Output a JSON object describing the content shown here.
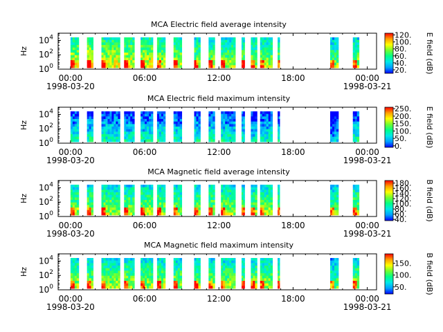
{
  "figure": {
    "background": "#ffffff",
    "colormap": [
      "#0000ff",
      "#00a0ff",
      "#00e8e8",
      "#00ff88",
      "#70ff30",
      "#ffff00",
      "#ffa000",
      "#ff0000"
    ]
  },
  "chart_data": [
    {
      "type": "heatmap",
      "title": "MCA  Electric field average intensity",
      "ylabel": "Hz",
      "colorbar_label": "E field (dB)",
      "colorbar_ticks": [
        "20.",
        "40.",
        "60.",
        "80.",
        "100.",
        "120."
      ],
      "colorbar_range": [
        10,
        125
      ],
      "x_ticks": [
        "00:00",
        "06:00",
        "12:00",
        "18:00",
        "00:00"
      ],
      "x_date_labels": [
        "1998-03-20",
        "1998-03-21"
      ],
      "y_ticks": [
        "10",
        "10",
        "10"
      ],
      "y_tick_exponents": [
        "0",
        "2",
        "4"
      ],
      "ylim": [
        1,
        100000
      ],
      "yscale": "log",
      "xlim": [
        "1998-03-19 23:00",
        "1998-03-21 00:45"
      ],
      "data_coverage": [
        {
          "start": "1998-03-20 00:00",
          "end": "1998-03-20 00:40",
          "level": 0.55
        },
        {
          "start": "1998-03-20 01:20",
          "end": "1998-03-20 01:50",
          "level": 0.6
        },
        {
          "start": "1998-03-20 02:30",
          "end": "1998-03-20 04:00",
          "level": 0.55
        },
        {
          "start": "1998-03-20 04:20",
          "end": "1998-03-20 05:10",
          "level": 0.55
        },
        {
          "start": "1998-03-20 05:40",
          "end": "1998-03-20 06:40",
          "level": 0.55
        },
        {
          "start": "1998-03-20 07:00",
          "end": "1998-03-20 07:40",
          "level": 0.5
        },
        {
          "start": "1998-03-20 08:20",
          "end": "1998-03-20 09:00",
          "level": 0.5
        },
        {
          "start": "1998-03-20 10:00",
          "end": "1998-03-20 10:30",
          "level": 0.45
        },
        {
          "start": "1998-03-20 11:10",
          "end": "1998-03-20 11:40",
          "level": 0.45
        },
        {
          "start": "1998-03-20 12:10",
          "end": "1998-03-20 13:20",
          "level": 0.45
        },
        {
          "start": "1998-03-20 13:50",
          "end": "1998-03-20 14:05",
          "level": 0.45
        },
        {
          "start": "1998-03-20 14:35",
          "end": "1998-03-20 15:05",
          "level": 0.45
        },
        {
          "start": "1998-03-20 15:20",
          "end": "1998-03-20 16:20",
          "level": 0.45
        },
        {
          "start": "1998-03-20 16:45",
          "end": "1998-03-20 16:55",
          "level": 0.45
        },
        {
          "start": "1998-03-20 21:00",
          "end": "1998-03-20 21:40",
          "level": 0.4
        },
        {
          "start": "1998-03-20 22:50",
          "end": "1998-03-20 23:20",
          "level": 0.45
        }
      ]
    },
    {
      "type": "heatmap",
      "title": "MCA  Electric field maximum intensity",
      "ylabel": "Hz",
      "colorbar_label": "E field (dB)",
      "colorbar_ticks": [
        "0.",
        "50.",
        "100.",
        "150.",
        "200.",
        "250."
      ],
      "colorbar_range": [
        -10,
        260
      ],
      "x_ticks": [
        "00:00",
        "06:00",
        "12:00",
        "18:00",
        "00:00"
      ],
      "x_date_labels": [
        "1998-03-20",
        "1998-03-21"
      ],
      "y_ticks": [
        "10",
        "10",
        "10"
      ],
      "y_tick_exponents": [
        "0",
        "2",
        "4"
      ],
      "ylim": [
        1,
        100000
      ],
      "yscale": "log",
      "xlim": [
        "1998-03-19 23:00",
        "1998-03-21 00:45"
      ],
      "data_coverage": [
        {
          "start": "1998-03-20 00:00",
          "end": "1998-03-20 00:40",
          "level": 0.2
        },
        {
          "start": "1998-03-20 01:20",
          "end": "1998-03-20 01:50",
          "level": 0.2
        },
        {
          "start": "1998-03-20 02:30",
          "end": "1998-03-20 04:00",
          "level": 0.2
        },
        {
          "start": "1998-03-20 04:20",
          "end": "1998-03-20 05:10",
          "level": 0.2
        },
        {
          "start": "1998-03-20 05:40",
          "end": "1998-03-20 06:40",
          "level": 0.2
        },
        {
          "start": "1998-03-20 07:00",
          "end": "1998-03-20 07:40",
          "level": 0.2
        },
        {
          "start": "1998-03-20 08:20",
          "end": "1998-03-20 09:00",
          "level": 0.2
        },
        {
          "start": "1998-03-20 10:00",
          "end": "1998-03-20 10:30",
          "level": 0.2
        },
        {
          "start": "1998-03-20 11:10",
          "end": "1998-03-20 11:40",
          "level": 0.2
        },
        {
          "start": "1998-03-20 12:10",
          "end": "1998-03-20 13:20",
          "level": 0.2
        },
        {
          "start": "1998-03-20 13:50",
          "end": "1998-03-20 14:05",
          "level": 0.2
        },
        {
          "start": "1998-03-20 14:35",
          "end": "1998-03-20 15:05",
          "level": 0.15
        },
        {
          "start": "1998-03-20 15:20",
          "end": "1998-03-20 16:20",
          "level": 0.2
        },
        {
          "start": "1998-03-20 16:45",
          "end": "1998-03-20 16:55",
          "level": 0.2
        },
        {
          "start": "1998-03-20 21:00",
          "end": "1998-03-20 21:40",
          "level": 0.05
        },
        {
          "start": "1998-03-20 22:50",
          "end": "1998-03-20 23:20",
          "level": 0.2
        }
      ]
    },
    {
      "type": "heatmap",
      "title": "MCA  Magnetic field average intensity",
      "ylabel": "Hz",
      "colorbar_label": "B field (dB)",
      "colorbar_ticks": [
        "40.",
        "60.",
        "80.",
        "100.",
        "120.",
        "140.",
        "160.",
        "180."
      ],
      "colorbar_range": [
        35,
        190
      ],
      "x_ticks": [
        "00:00",
        "06:00",
        "12:00",
        "18:00",
        "00:00"
      ],
      "x_date_labels": [
        "1998-03-20",
        "1998-03-21"
      ],
      "y_ticks": [
        "10",
        "10",
        "10"
      ],
      "y_tick_exponents": [
        "0",
        "2",
        "4"
      ],
      "ylim": [
        1,
        100000
      ],
      "yscale": "log",
      "xlim": [
        "1998-03-19 23:00",
        "1998-03-21 00:45"
      ],
      "data_coverage": [
        {
          "start": "1998-03-20 00:00",
          "end": "1998-03-20 00:40",
          "level": 0.45
        },
        {
          "start": "1998-03-20 01:20",
          "end": "1998-03-20 01:50",
          "level": 0.45
        },
        {
          "start": "1998-03-20 02:30",
          "end": "1998-03-20 04:00",
          "level": 0.45
        },
        {
          "start": "1998-03-20 04:20",
          "end": "1998-03-20 05:10",
          "level": 0.45
        },
        {
          "start": "1998-03-20 05:40",
          "end": "1998-03-20 06:40",
          "level": 0.45
        },
        {
          "start": "1998-03-20 07:00",
          "end": "1998-03-20 07:40",
          "level": 0.45
        },
        {
          "start": "1998-03-20 08:20",
          "end": "1998-03-20 09:00",
          "level": 0.45
        },
        {
          "start": "1998-03-20 10:00",
          "end": "1998-03-20 10:30",
          "level": 0.45
        },
        {
          "start": "1998-03-20 11:10",
          "end": "1998-03-20 11:40",
          "level": 0.45
        },
        {
          "start": "1998-03-20 12:10",
          "end": "1998-03-20 13:20",
          "level": 0.45
        },
        {
          "start": "1998-03-20 13:50",
          "end": "1998-03-20 14:05",
          "level": 0.45
        },
        {
          "start": "1998-03-20 14:35",
          "end": "1998-03-20 15:05",
          "level": 0.45
        },
        {
          "start": "1998-03-20 15:20",
          "end": "1998-03-20 16:20",
          "level": 0.45
        },
        {
          "start": "1998-03-20 16:45",
          "end": "1998-03-20 16:55",
          "level": 0.45
        },
        {
          "start": "1998-03-20 21:00",
          "end": "1998-03-20 21:40",
          "level": 0.4
        },
        {
          "start": "1998-03-20 22:50",
          "end": "1998-03-20 23:20",
          "level": 0.45
        }
      ]
    },
    {
      "type": "heatmap",
      "title": "MCA  Magnetic field maximum intensity",
      "ylabel": "Hz",
      "colorbar_label": "B field (dB)",
      "colorbar_ticks": [
        "50.",
        "100.",
        "150."
      ],
      "colorbar_range": [
        20,
        190
      ],
      "x_ticks": [
        "00:00",
        "06:00",
        "12:00",
        "18:00",
        "00:00"
      ],
      "x_date_labels": [
        "1998-03-20",
        "1998-03-21"
      ],
      "y_ticks": [
        "10",
        "10",
        "10"
      ],
      "y_tick_exponents": [
        "0",
        "2",
        "4"
      ],
      "ylim": [
        1,
        100000
      ],
      "yscale": "log",
      "xlim": [
        "1998-03-19 23:00",
        "1998-03-21 00:45"
      ],
      "data_coverage": [
        {
          "start": "1998-03-20 00:00",
          "end": "1998-03-20 00:40",
          "level": 0.45
        },
        {
          "start": "1998-03-20 01:20",
          "end": "1998-03-20 01:50",
          "level": 0.45
        },
        {
          "start": "1998-03-20 02:30",
          "end": "1998-03-20 04:00",
          "level": 0.45
        },
        {
          "start": "1998-03-20 04:20",
          "end": "1998-03-20 05:10",
          "level": 0.45
        },
        {
          "start": "1998-03-20 05:40",
          "end": "1998-03-20 06:40",
          "level": 0.45
        },
        {
          "start": "1998-03-20 07:00",
          "end": "1998-03-20 07:40",
          "level": 0.45
        },
        {
          "start": "1998-03-20 08:20",
          "end": "1998-03-20 09:00",
          "level": 0.45
        },
        {
          "start": "1998-03-20 10:00",
          "end": "1998-03-20 10:30",
          "level": 0.45
        },
        {
          "start": "1998-03-20 11:10",
          "end": "1998-03-20 11:40",
          "level": 0.45
        },
        {
          "start": "1998-03-20 12:10",
          "end": "1998-03-20 13:20",
          "level": 0.45
        },
        {
          "start": "1998-03-20 13:50",
          "end": "1998-03-20 14:05",
          "level": 0.45
        },
        {
          "start": "1998-03-20 14:35",
          "end": "1998-03-20 15:05",
          "level": 0.45
        },
        {
          "start": "1998-03-20 15:20",
          "end": "1998-03-20 16:20",
          "level": 0.45
        },
        {
          "start": "1998-03-20 16:45",
          "end": "1998-03-20 16:55",
          "level": 0.45
        },
        {
          "start": "1998-03-20 21:00",
          "end": "1998-03-20 21:40",
          "level": 0.35
        },
        {
          "start": "1998-03-20 22:50",
          "end": "1998-03-20 23:20",
          "level": 0.45
        }
      ]
    }
  ]
}
